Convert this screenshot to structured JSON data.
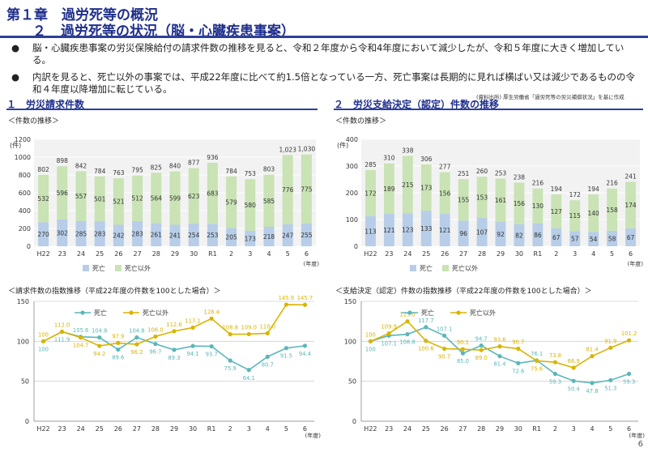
{
  "header": {
    "line1": "第１章　過労死等の概況",
    "line2_num": "２",
    "line2_text": "過労死等の状況（脳・心臓疾患事案）"
  },
  "bullets": [
    {
      "mark": "●",
      "text": "脳・心臓疾患事案の労災保険給付の請求件数の推移を見ると、令和２年度から令和4年度において減少したが、令和５年度に大きく増加している。"
    },
    {
      "mark": "●",
      "text": "内訳を見ると、死亡以外の事案では、平成22年度に比べて約1.5倍となっている一方、死亡事案は長期的に見れば横ばい又は減少であるものの令和４年度以降増加に転じている。"
    }
  ],
  "source_note": "(資料出所) 厚生労働省「過労死等の労災補償状況」を基に作成",
  "sections": {
    "left": "１　労災請求件数",
    "right": "２　労災支給決定（認定）件数の推移"
  },
  "panels": {
    "left_top_title": "＜件数の推移＞",
    "right_top_title": "＜件数の推移＞",
    "left_bottom_title": "＜請求件数の指数推移（平成22年度の件数を100とした場合）＞",
    "right_bottom_title": "＜支給決定（認定）件数の指数推移（平成22年度の件数を100とした場合）＞"
  },
  "page_number": "6",
  "colors": {
    "death_bar": "#b7cde8",
    "other_bar": "#c9e3b4",
    "death_line": "#5bb6b8",
    "other_line": "#d8b400",
    "accent": "#1f2f8c"
  },
  "chart_data": [
    {
      "id": "claims_count",
      "type": "bar",
      "stacked": true,
      "categories": [
        "H22",
        "23",
        "24",
        "25",
        "26",
        "27",
        "28",
        "29",
        "30",
        "R1",
        "2",
        "3",
        "4",
        "5",
        "6"
      ],
      "series": [
        {
          "name": "死亡",
          "values": [
            270,
            302,
            285,
            283,
            242,
            283,
            261,
            241,
            254,
            253,
            205,
            173,
            218,
            247,
            255
          ]
        },
        {
          "name": "死亡以外",
          "values": [
            532,
            596,
            557,
            501,
            521,
            512,
            564,
            599,
            623,
            683,
            579,
            580,
            585,
            776,
            775
          ]
        }
      ],
      "totals": [
        802,
        898,
        842,
        784,
        763,
        795,
        825,
        840,
        877,
        936,
        784,
        753,
        803,
        1023,
        1030
      ],
      "total_labels": [
        "802",
        "898",
        "842",
        "784",
        "763",
        "795",
        "825",
        "840",
        "877",
        "936",
        "784",
        "753",
        "803",
        "1,023",
        "1,030"
      ],
      "ylabel": "(件)",
      "xlabel": "(年度)",
      "ylim": [
        0,
        1200
      ],
      "yticks": [
        "0",
        "200",
        "400",
        "600",
        "800",
        "1000",
        "1200"
      ],
      "yticks_values": [
        0,
        200,
        400,
        600,
        800,
        1000,
        1200
      ],
      "legend_placement": "bottom-left"
    },
    {
      "id": "approved_count",
      "type": "bar",
      "stacked": true,
      "categories": [
        "H22",
        "23",
        "24",
        "25",
        "26",
        "27",
        "28",
        "29",
        "30",
        "R1",
        "2",
        "3",
        "4",
        "5",
        "6"
      ],
      "series": [
        {
          "name": "死亡",
          "values": [
            113,
            121,
            123,
            133,
            121,
            96,
            107,
            92,
            82,
            86,
            67,
            57,
            54,
            58,
            67
          ]
        },
        {
          "name": "死亡以外",
          "values": [
            172,
            189,
            215,
            173,
            156,
            155,
            153,
            161,
            156,
            130,
            127,
            115,
            140,
            158,
            174
          ]
        }
      ],
      "totals": [
        285,
        310,
        338,
        306,
        277,
        251,
        260,
        253,
        238,
        216,
        194,
        172,
        194,
        216,
        241
      ],
      "total_labels": [
        "285",
        "310",
        "338",
        "306",
        "277",
        "251",
        "260",
        "253",
        "238",
        "216",
        "194",
        "172",
        "194",
        "216",
        "241"
      ],
      "ylabel": "(件)",
      "xlabel": "(年度)",
      "ylim": [
        0,
        400
      ],
      "yticks": [
        "0",
        "100",
        "200",
        "300",
        "400"
      ],
      "yticks_values": [
        0,
        100,
        200,
        300,
        400
      ],
      "legend_placement": "bottom-left"
    },
    {
      "id": "claims_index",
      "type": "line",
      "categories": [
        "H22",
        "23",
        "24",
        "25",
        "26",
        "27",
        "28",
        "29",
        "30",
        "R1",
        "2",
        "3",
        "4",
        "5",
        "6"
      ],
      "series": [
        {
          "name": "死亡",
          "values": [
            100,
            111.9,
            105.6,
            104.8,
            89.6,
            104.8,
            96.7,
            89.3,
            94.1,
            93.7,
            75.9,
            64.1,
            80.7,
            91.5,
            94.4
          ],
          "labels": [
            "100",
            "111.9",
            "105.6",
            "104.8",
            "89.6",
            "104.8",
            "96.7",
            "89.3",
            "94.1",
            "93.7",
            "75.9",
            "64.1",
            "80.7",
            "91.5",
            "94.4"
          ]
        },
        {
          "name": "死亡以外",
          "values": [
            100,
            112.0,
            104.7,
            94.2,
            97.9,
            96.2,
            106.0,
            112.6,
            117.1,
            128.4,
            108.8,
            109.0,
            110.0,
            145.9,
            145.7
          ],
          "labels": [
            "100",
            "112.0",
            "104.7",
            "94.2",
            "97.9",
            "96.2",
            "106.0",
            "112.6",
            "117.1",
            "128.4",
            "108.8",
            "109.0",
            "110.0",
            "145.9",
            "145.7"
          ]
        }
      ],
      "xlabel": "(年度)",
      "ylim": [
        0,
        150
      ],
      "yticks": [
        "0",
        "50",
        "100",
        "150"
      ],
      "yticks_values": [
        0,
        50,
        100,
        150
      ],
      "legend_placement": "top-left"
    },
    {
      "id": "approved_index",
      "type": "line",
      "categories": [
        "H22",
        "23",
        "24",
        "25",
        "26",
        "27",
        "28",
        "29",
        "30",
        "R1",
        "2",
        "3",
        "4",
        "5",
        "6"
      ],
      "series": [
        {
          "name": "死亡",
          "values": [
            100,
            107.1,
            108.8,
            117.7,
            107.1,
            85.0,
            94.7,
            81.4,
            72.6,
            76.1,
            59.3,
            50.4,
            47.8,
            51.3,
            59.3
          ],
          "labels": [
            "100",
            "107.1",
            "108.8",
            "117.7",
            "107.1",
            "85.0",
            "94.7",
            "81.4",
            "72.6",
            "76.1",
            "59.3",
            "50.4",
            "47.8",
            "51.3",
            "59.3"
          ]
        },
        {
          "name": "死亡以外",
          "values": [
            100,
            109.9,
            125.0,
            100.6,
            90.7,
            90.1,
            89.0,
            93.6,
            90.7,
            75.6,
            73.8,
            66.9,
            81.4,
            91.9,
            101.2
          ],
          "labels": [
            "100",
            "109.9",
            "125.0",
            "100.6",
            "90.7",
            "90.1",
            "89.0",
            "93.6",
            "90.7",
            "75.6",
            "73.8",
            "66.9",
            "81.4",
            "91.9",
            "101.2"
          ]
        }
      ],
      "xlabel": "(年度)",
      "ylim": [
        0,
        150
      ],
      "yticks": [
        "0",
        "50",
        "100",
        "150"
      ],
      "yticks_values": [
        0,
        50,
        100,
        150
      ],
      "legend_placement": "top-left"
    }
  ]
}
